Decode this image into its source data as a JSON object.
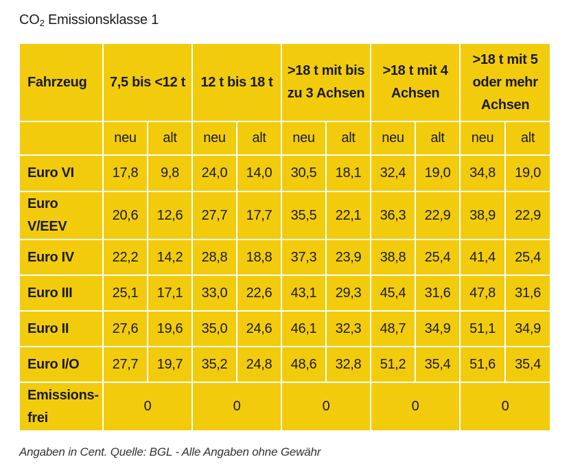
{
  "title": {
    "prefix": "CO",
    "subscript": "2",
    "suffix": " Emissionsklasse 1"
  },
  "table": {
    "corner_label": "Fahrzeug",
    "columns": [
      {
        "label": "7,5 bis <12 t"
      },
      {
        "label": "12 t bis 18 t"
      },
      {
        "label": ">18 t mit bis zu 3 Achsen"
      },
      {
        "label": ">18 t mit 4 Achsen"
      },
      {
        "label": ">18 t mit 5 oder mehr Achsen"
      }
    ],
    "sub_new": "neu",
    "sub_old": "alt",
    "rows": [
      {
        "label": "Euro VI",
        "values": [
          "17,8",
          "9,8",
          "24,0",
          "14,0",
          "30,5",
          "18,1",
          "32,4",
          "19,0",
          "34,8",
          "19,0"
        ]
      },
      {
        "label": "Euro V/EEV",
        "values": [
          "20,6",
          "12,6",
          "27,7",
          "17,7",
          "35,5",
          "22,1",
          "36,3",
          "22,9",
          "38,9",
          "22,9"
        ]
      },
      {
        "label": "Euro IV",
        "values": [
          "22,2",
          "14,2",
          "28,8",
          "18,8",
          "37,3",
          "23,9",
          "38,8",
          "25,4",
          "41,4",
          "25,4"
        ]
      },
      {
        "label": "Euro III",
        "values": [
          "25,1",
          "17,1",
          "33,0",
          "22,6",
          "43,1",
          "29,3",
          "45,4",
          "31,6",
          "47,8",
          "31,6"
        ]
      },
      {
        "label": "Euro II",
        "values": [
          "27,6",
          "19,6",
          "35,0",
          "24,6",
          "46,1",
          "32,3",
          "48,7",
          "34,9",
          "51,1",
          "34,9"
        ]
      },
      {
        "label": "Euro I/O",
        "values": [
          "27,7",
          "19,7",
          "35,2",
          "24,8",
          "48,6",
          "32,8",
          "51,2",
          "35,4",
          "51,6",
          "35,4"
        ]
      }
    ],
    "emission_free": {
      "label": "Emissions-frei",
      "values": [
        "0",
        "0",
        "0",
        "0",
        "0"
      ]
    }
  },
  "caption": "Angaben in Cent. Quelle: BGL - Alle Angaben ohne Gewähr",
  "colors": {
    "table_fill": "#f2cc0c",
    "grid_lines": "#ffffff",
    "text": "#1a1a1a"
  }
}
